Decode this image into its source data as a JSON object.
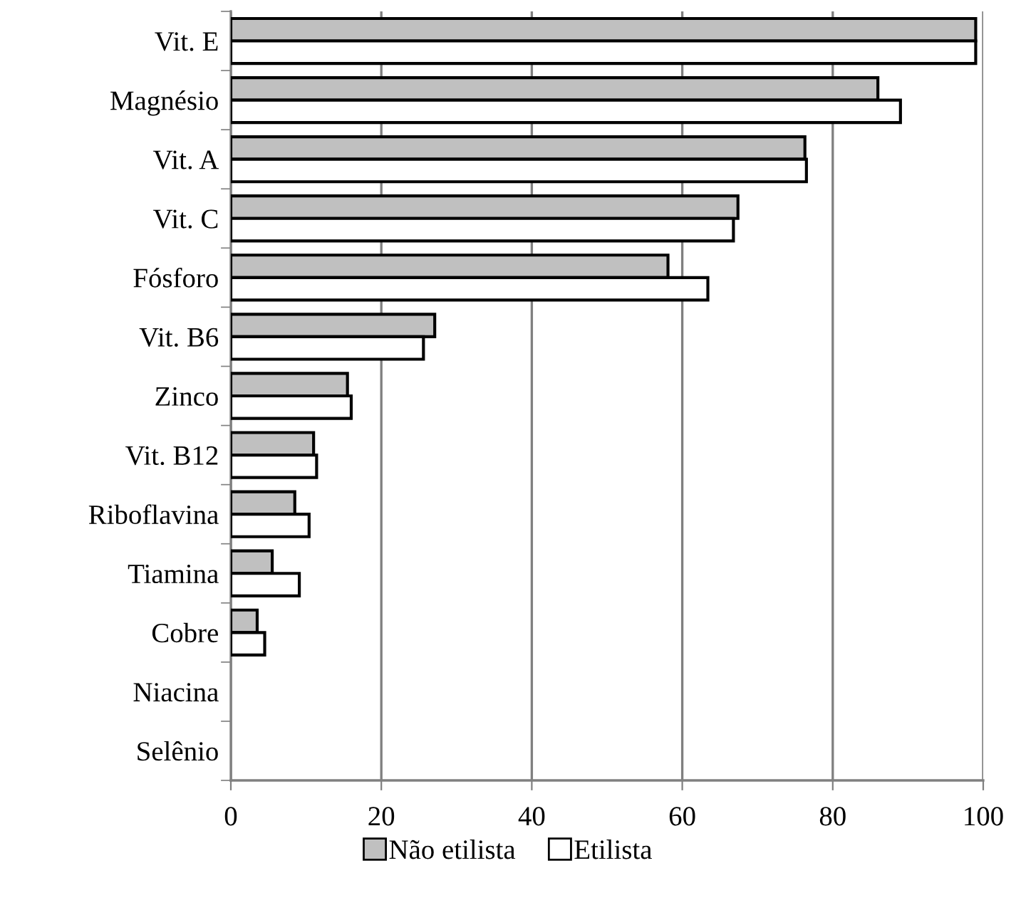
{
  "chart_data": {
    "type": "bar",
    "orientation": "horizontal",
    "categories": [
      "Vit. E",
      "Magnésio",
      "Vit. A",
      "Vit. C",
      "Fósforo",
      "Vit. B6",
      "Zinco",
      "Vit. B12",
      "Riboflavina",
      "Tiamina",
      "Cobre",
      "Niacina",
      "Selênio"
    ],
    "series": [
      {
        "name": "Não etilista",
        "color": "#c0c0c0",
        "values": [
          99,
          86,
          76.3,
          67.4,
          58.1,
          27.1,
          15.5,
          11,
          8.5,
          5.5,
          3.5,
          0,
          0
        ]
      },
      {
        "name": "Etilista",
        "color": "#ffffff",
        "values": [
          99,
          89,
          76.5,
          66.8,
          63.4,
          25.6,
          16,
          11.4,
          10.4,
          9.1,
          4.5,
          0,
          0
        ]
      }
    ],
    "xlim": [
      0,
      100
    ],
    "xticks": [
      0,
      20,
      40,
      60,
      80,
      100
    ],
    "grid": "x",
    "legend": "bottom"
  }
}
